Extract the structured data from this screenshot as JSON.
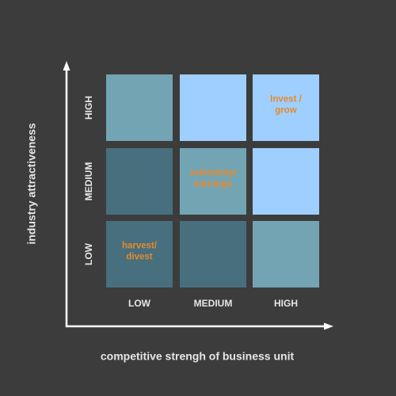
{
  "axes": {
    "y_title": "industry attractiveness",
    "x_title": "competitive strengh of business unit"
  },
  "rows": [
    "HIGH",
    "MEDIUM",
    "LOW"
  ],
  "columns": [
    "LOW",
    "MEDIUM",
    "HIGH"
  ],
  "cells": {
    "0": {
      "2": [
        "Invest /",
        "grow"
      ]
    },
    "1": {
      "1": [
        "selectivity/",
        "earnings"
      ]
    },
    "2": {
      "0": [
        "harvest/",
        "divest"
      ]
    }
  }
}
